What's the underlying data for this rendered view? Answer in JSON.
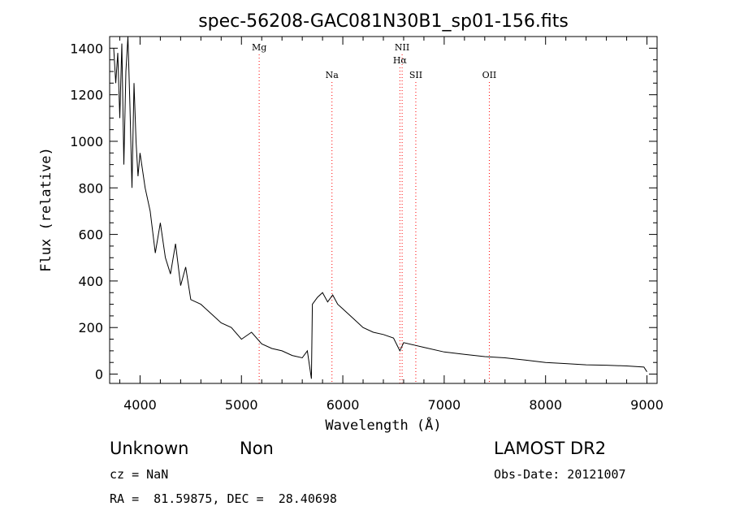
{
  "chart_data": {
    "type": "line",
    "title": "spec-56208-GAC081N30B1_sp01-156.fits",
    "xlabel": "Wavelength (Å)",
    "ylabel": "Flux (relative)",
    "xlim": [
      3700,
      9100
    ],
    "ylim": [
      -40,
      1450
    ],
    "xticks": [
      4000,
      5000,
      6000,
      7000,
      8000,
      9000
    ],
    "yticks": [
      0,
      200,
      400,
      600,
      800,
      1000,
      1200,
      1400
    ],
    "series": [
      {
        "line_color": "#000000",
        "x": [
          3740,
          3760,
          3780,
          3800,
          3820,
          3840,
          3860,
          3880,
          3900,
          3920,
          3940,
          3960,
          3980,
          4000,
          4050,
          4100,
          4150,
          4200,
          4250,
          4300,
          4350,
          4400,
          4450,
          4500,
          4600,
          4700,
          4800,
          4900,
          5000,
          5100,
          5200,
          5300,
          5400,
          5500,
          5600,
          5650,
          5690,
          5700,
          5750,
          5800,
          5850,
          5900,
          5950,
          6000,
          6100,
          6200,
          6300,
          6400,
          6500,
          6563,
          6600,
          6700,
          6800,
          7000,
          7200,
          7400,
          7600,
          7800,
          8000,
          8200,
          8400,
          8600,
          8800,
          8970,
          9000
        ],
        "y": [
          1400,
          1250,
          1380,
          1100,
          1420,
          900,
          1300,
          1450,
          1150,
          800,
          1250,
          1000,
          850,
          950,
          800,
          700,
          520,
          650,
          500,
          430,
          560,
          380,
          460,
          320,
          300,
          260,
          220,
          200,
          150,
          180,
          130,
          110,
          100,
          80,
          70,
          100,
          -20,
          300,
          330,
          350,
          310,
          340,
          300,
          280,
          240,
          200,
          180,
          170,
          155,
          100,
          135,
          125,
          115,
          95,
          85,
          75,
          70,
          60,
          50,
          45,
          40,
          38,
          35,
          30,
          10
        ]
      }
    ],
    "emission_lines": [
      {
        "label": "Mg",
        "x": 5175,
        "row": 1
      },
      {
        "label": "Na",
        "x": 5893,
        "row": 2
      },
      {
        "label": "NII",
        "x": 6585,
        "row": 1
      },
      {
        "label": "Hα",
        "x": 6563,
        "row": 1.5
      },
      {
        "label": "SII",
        "x": 6720,
        "row": 2
      },
      {
        "label": "OII",
        "x": 7445,
        "row": 2
      }
    ],
    "line_marker_color": "#ff0000"
  },
  "info": {
    "class": "Unknown",
    "subclass": "Non",
    "survey": "LAMOST DR2",
    "cz": "cz = NaN",
    "obs_date": "Obs-Date: 20121007",
    "coords": "RA =  81.59875, DEC =  28.40698"
  }
}
